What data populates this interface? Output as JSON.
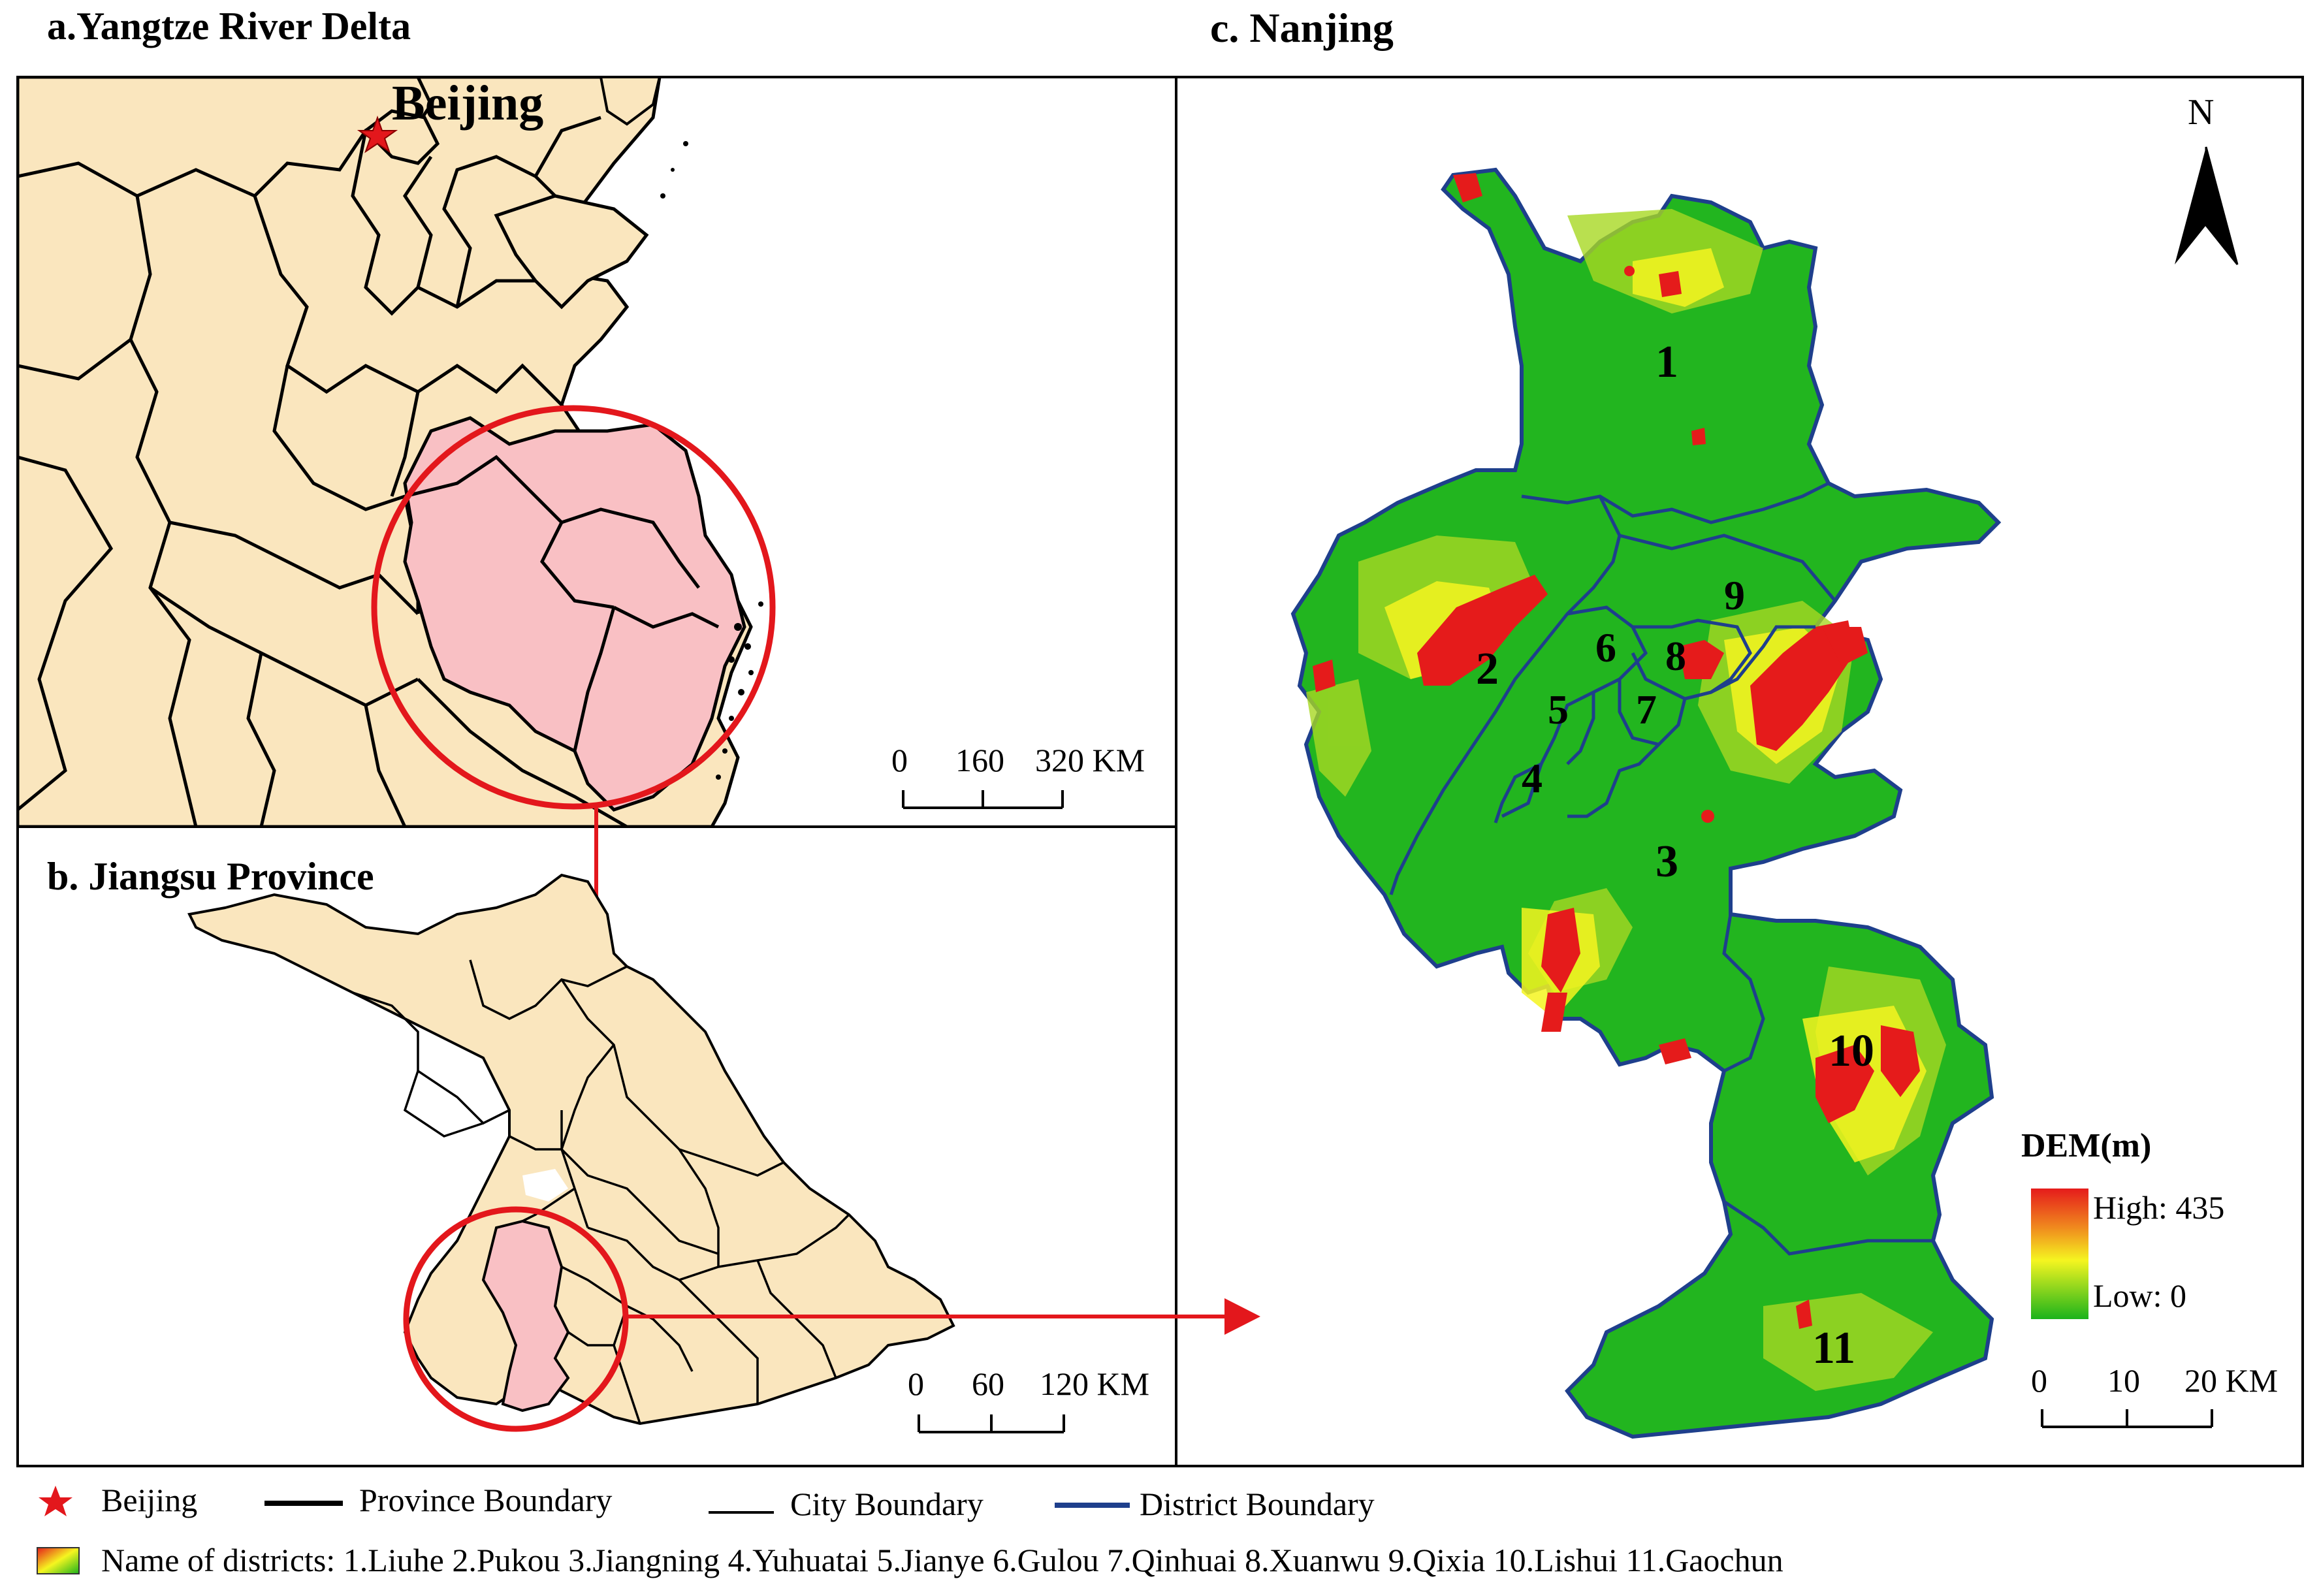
{
  "panel_a": {
    "title": "a.Yangtze River Delta",
    "city_label": "Beijing",
    "scale": {
      "ticks": [
        "0",
        "160",
        "320 KM"
      ]
    }
  },
  "panel_b": {
    "title": "b. Jiangsu Province",
    "scale": {
      "ticks": [
        "0",
        "60",
        "120 KM"
      ]
    }
  },
  "panel_c": {
    "title": "c. Nanjing",
    "north_label": "N",
    "districts": [
      {
        "num": "1",
        "name": "Liuhe"
      },
      {
        "num": "2",
        "name": "Pukou"
      },
      {
        "num": "3",
        "name": "Jiangning"
      },
      {
        "num": "4",
        "name": "Yuhuatai"
      },
      {
        "num": "5",
        "name": "Jianye"
      },
      {
        "num": "6",
        "name": "Gulou"
      },
      {
        "num": "7",
        "name": "Qinhuai"
      },
      {
        "num": "8",
        "name": "Xuanwu"
      },
      {
        "num": "9",
        "name": "Qixia"
      },
      {
        "num": "10",
        "name": "Lishui"
      },
      {
        "num": "11",
        "name": "Gaochun"
      }
    ],
    "dem_legend": {
      "title": "DEM(m)",
      "high": "High: 435",
      "low": "Low: 0"
    },
    "scale": {
      "ticks": [
        "0",
        "10",
        "20 KM"
      ]
    }
  },
  "legend": {
    "beijing": "Beijing",
    "province": "Province Boundary",
    "city": "City Boundary",
    "district": "District Boundary",
    "names": "Name of districts: 1.Liuhe 2.Pukou 3.Jiangning 4.Yuhuatai 5.Jianye 6.Gulou 7.Qinhuai 8.Xuanwu 9.Qixia 10.Lishui 11.Gaochun"
  },
  "colors": {
    "land": "#FAE6BE",
    "highlight": "#F9C0C4",
    "highlight_circle": "#E3171C",
    "district_boundary": "#1E3F8C",
    "dem_high": "#E51B1B",
    "dem_mid": "#F5F520",
    "dem_low": "#1BB31B"
  }
}
